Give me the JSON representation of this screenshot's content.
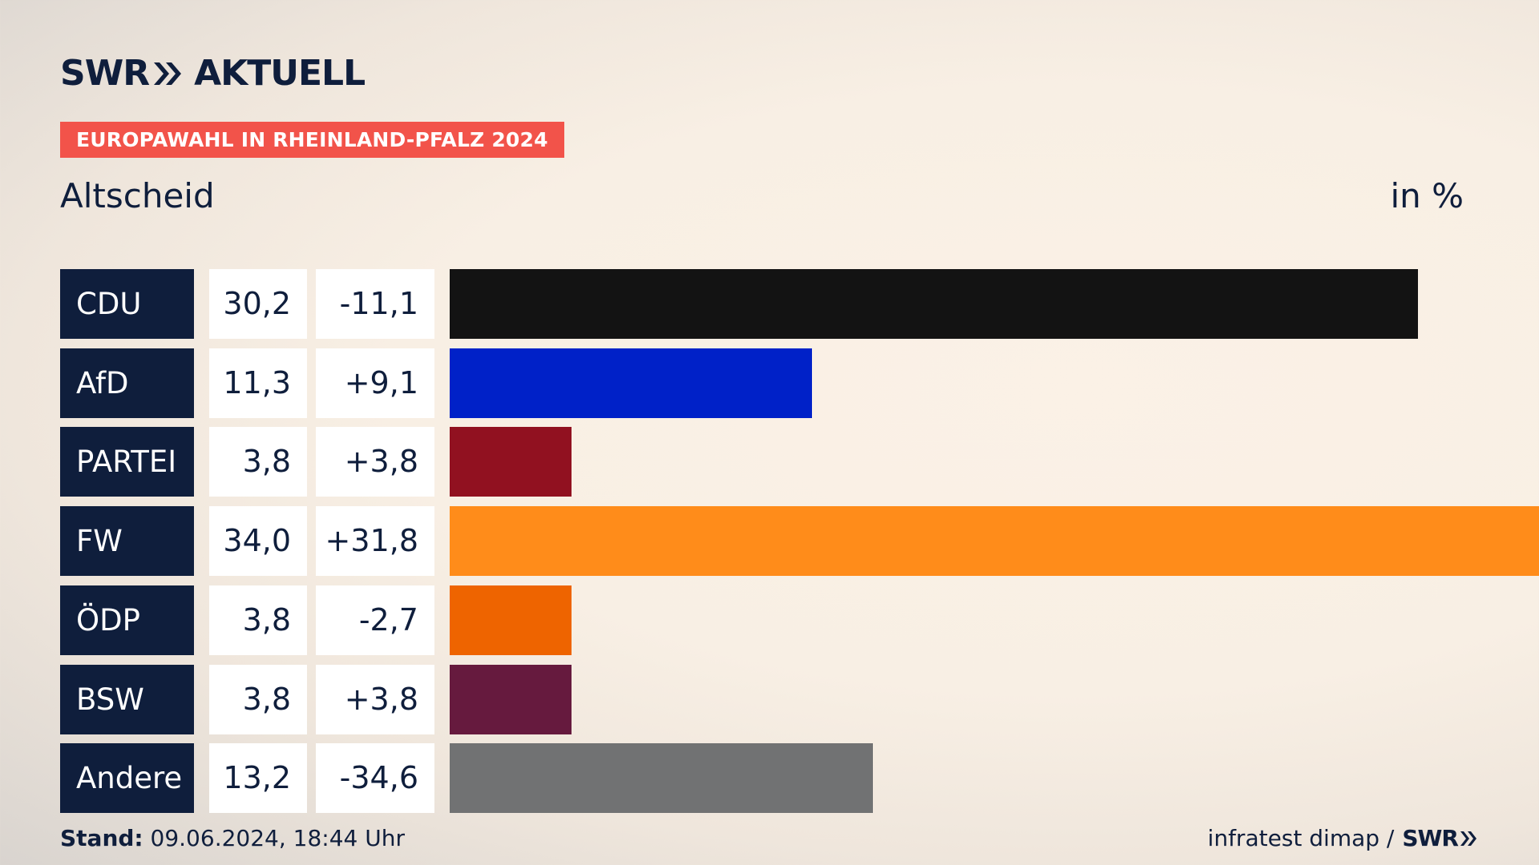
{
  "header": {
    "brand_left": "SWR",
    "brand_right": "AKTUELL",
    "badge": "EUROPAWAHL IN RHEINLAND-PFALZ 2024",
    "place": "Altscheid",
    "unit": "in %"
  },
  "colors": {
    "navy": "#0f1e3c",
    "badge": "#f2534a"
  },
  "chart_data": {
    "type": "bar",
    "orientation": "horizontal",
    "categories": [
      "CDU",
      "AfD",
      "PARTEI",
      "FW",
      "ÖDP",
      "BSW",
      "Andere"
    ],
    "values": [
      30.2,
      11.3,
      3.8,
      34.0,
      3.8,
      3.8,
      13.2
    ],
    "value_labels": [
      "30,2",
      "11,3",
      "3,8",
      "34,0",
      "3,8",
      "3,8",
      "13,2"
    ],
    "change_labels": [
      "-11,1",
      "+9,1",
      "+3,8",
      "+31,8",
      "-2,7",
      "+3,8",
      "-34,6"
    ],
    "changes": [
      -11.1,
      9.1,
      3.8,
      31.8,
      -2.7,
      3.8,
      -34.6
    ],
    "bar_colors": [
      "#131313",
      "#0021c8",
      "#911120",
      "#ff8c1a",
      "#ee6400",
      "#661a3e",
      "#717273"
    ],
    "xlim": [
      0,
      34.0
    ]
  },
  "footer": {
    "stand_label": "Stand:",
    "stand_value": "09.06.2024, 18:44 Uhr",
    "source": "infratest dimap /",
    "source_brand": "SWR"
  }
}
